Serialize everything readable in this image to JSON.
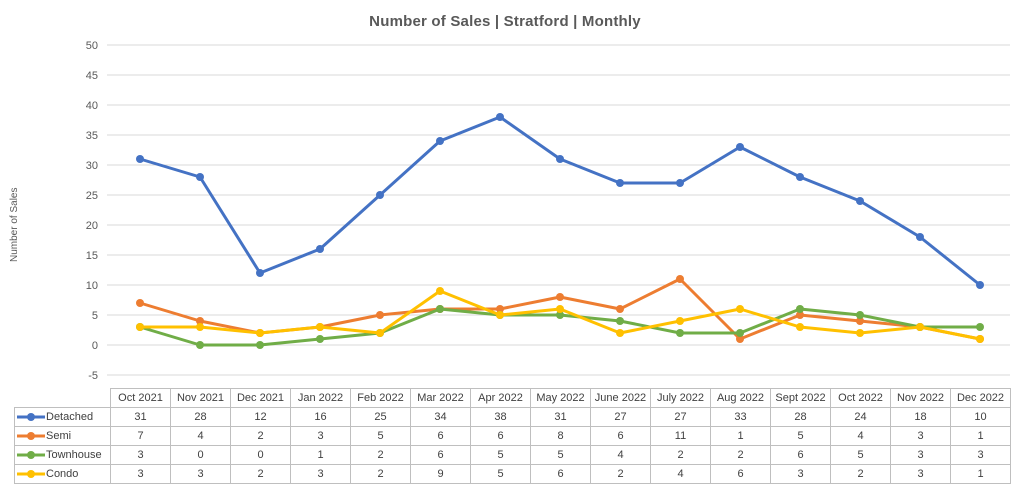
{
  "chart_data": {
    "type": "line",
    "title": "Number of Sales | Stratford | Monthly",
    "xlabel": "",
    "ylabel": "Number of Sales",
    "ylim": [
      -5,
      50
    ],
    "ytick_step": 5,
    "grid": true,
    "gridline_color": "#d9d9d9",
    "legend_position": "table-left",
    "title_color": "#595959",
    "axis_text_color": "#595959",
    "table_border_color": "#bfbfbf",
    "categories": [
      "Oct 2021",
      "Nov 2021",
      "Dec 2021",
      "Jan 2022",
      "Feb 2022",
      "Mar 2022",
      "Apr 2022",
      "May 2022",
      "June 2022",
      "July 2022",
      "Aug 2022",
      "Sept 2022",
      "Oct 2022",
      "Nov 2022",
      "Dec 2022"
    ],
    "series": [
      {
        "name": "Detached",
        "color": "#4472C4",
        "values": [
          31,
          28,
          12,
          16,
          25,
          34,
          38,
          31,
          27,
          27,
          33,
          28,
          24,
          18,
          10
        ]
      },
      {
        "name": "Semi",
        "color": "#ED7D31",
        "values": [
          7,
          4,
          2,
          3,
          5,
          6,
          6,
          8,
          6,
          11,
          1,
          5,
          4,
          3,
          1
        ]
      },
      {
        "name": "Townhouse",
        "color": "#70AD47",
        "values": [
          3,
          0,
          0,
          1,
          2,
          6,
          5,
          5,
          4,
          2,
          2,
          6,
          5,
          3,
          3
        ]
      },
      {
        "name": "Condo",
        "color": "#FFC000",
        "values": [
          3,
          3,
          2,
          3,
          2,
          9,
          5,
          6,
          2,
          4,
          6,
          3,
          2,
          3,
          1
        ]
      }
    ],
    "yticks": [
      -5,
      0,
      5,
      10,
      15,
      20,
      25,
      30,
      35,
      40,
      45,
      50
    ]
  }
}
